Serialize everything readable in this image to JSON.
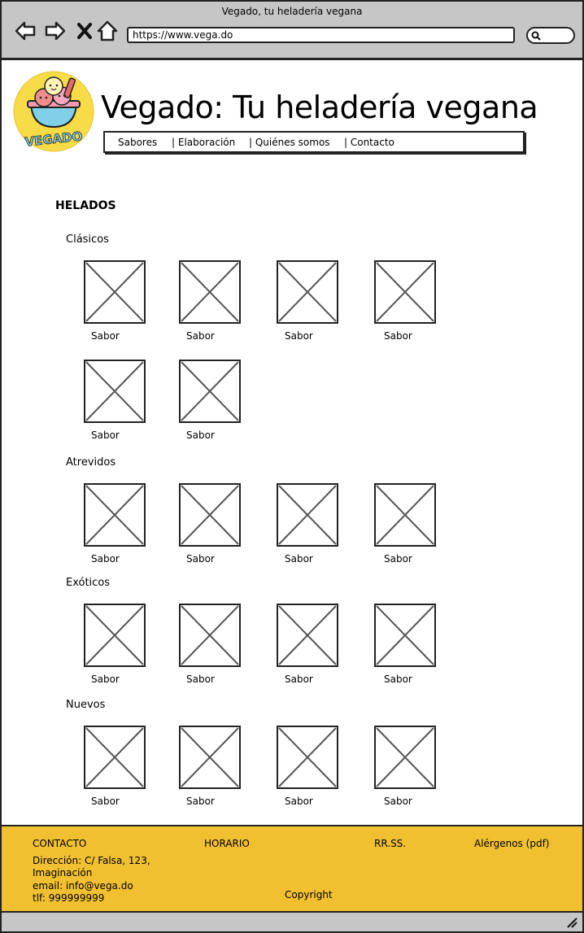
{
  "browser": {
    "window_title": "Vegado, tu heladería vegana",
    "url": "https://www.vega.do"
  },
  "site": {
    "title": "Vegado: Tu heladería vegana",
    "logo_text": "VEGADO",
    "nav": [
      "Sabores",
      "| Elaboración",
      "| Quiénes somos",
      "| Contacto"
    ]
  },
  "main": {
    "section_title": "HELADOS",
    "categories": [
      {
        "name": "Clásicos",
        "items": [
          "Sabor",
          "Sabor",
          "Sabor",
          "Sabor",
          "Sabor",
          "Sabor"
        ]
      },
      {
        "name": "Atrevidos",
        "items": [
          "Sabor",
          "Sabor",
          "Sabor",
          "Sabor"
        ]
      },
      {
        "name": "Exóticos",
        "items": [
          "Sabor",
          "Sabor",
          "Sabor",
          "Sabor"
        ]
      },
      {
        "name": "Nuevos",
        "items": [
          "Sabor",
          "Sabor",
          "Sabor",
          "Sabor"
        ]
      }
    ]
  },
  "footer": {
    "contact_heading": "CONTACTO",
    "address_line1": "Dirección: C/ Falsa, 123,",
    "address_line2": "Imaginación",
    "email": "email: info@vega.do",
    "phone": "tlf: 999999999",
    "hours_heading": "HORARIO",
    "social_heading": "RR.SS.",
    "allergens_link": "Alérgenos (pdf)",
    "copyright": "Copyright"
  },
  "colors": {
    "chrome": "#c6c6c6",
    "footer": "#f0c030",
    "logo_bg": "#f7dc48"
  }
}
